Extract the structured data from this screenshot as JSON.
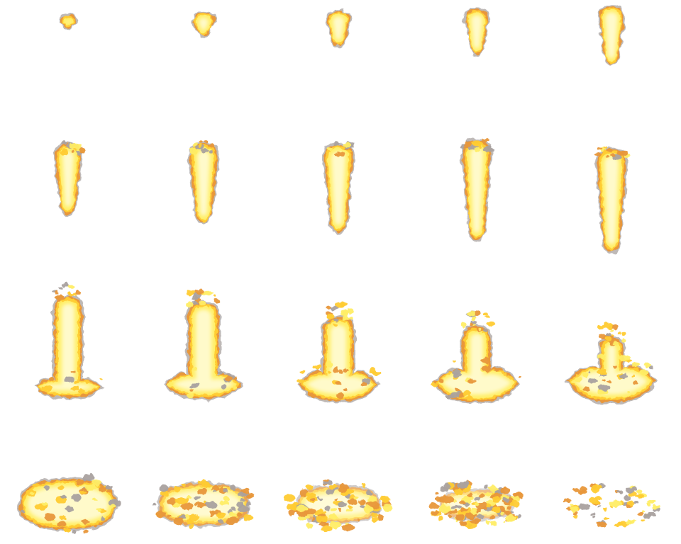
{
  "sprite_sheet": {
    "rows": 4,
    "columns": 5,
    "frame_count": 20,
    "background": "#ffffff",
    "colors": {
      "core": "#fffbd0",
      "body": "#ffee66",
      "flame": "#ffcc33",
      "edge": "#e8973a",
      "smoke": "#a9a2a0"
    },
    "frames": [
      {
        "index": 1,
        "phase": "rise"
      },
      {
        "index": 2,
        "phase": "rise"
      },
      {
        "index": 3,
        "phase": "rise"
      },
      {
        "index": 4,
        "phase": "rise"
      },
      {
        "index": 5,
        "phase": "rise"
      },
      {
        "index": 6,
        "phase": "column"
      },
      {
        "index": 7,
        "phase": "column"
      },
      {
        "index": 8,
        "phase": "column"
      },
      {
        "index": 9,
        "phase": "column"
      },
      {
        "index": 10,
        "phase": "column"
      },
      {
        "index": 11,
        "phase": "spread"
      },
      {
        "index": 12,
        "phase": "spread"
      },
      {
        "index": 13,
        "phase": "spread"
      },
      {
        "index": 14,
        "phase": "spread"
      },
      {
        "index": 15,
        "phase": "spread"
      },
      {
        "index": 16,
        "phase": "dissipate"
      },
      {
        "index": 17,
        "phase": "dissipate"
      },
      {
        "index": 18,
        "phase": "dissipate"
      },
      {
        "index": 19,
        "phase": "dissipate"
      },
      {
        "index": 20,
        "phase": "dissipate"
      }
    ]
  }
}
